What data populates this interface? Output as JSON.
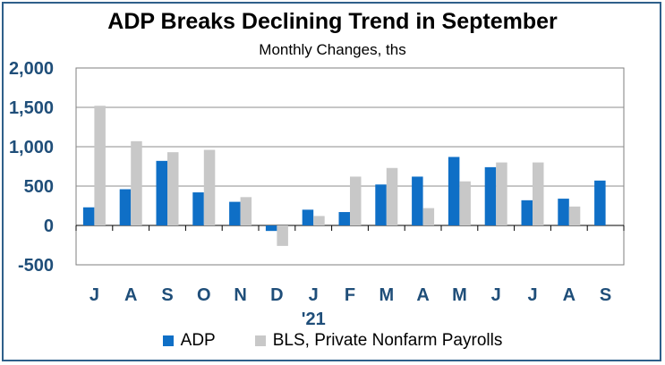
{
  "chart_data": {
    "type": "bar",
    "title": "ADP Breaks Declining Trend in September",
    "subtitle": "Monthly Changes, ths",
    "categories": [
      "J",
      "A",
      "S",
      "O",
      "N",
      "D",
      "J",
      "F",
      "M",
      "A",
      "M",
      "J",
      "J",
      "A",
      "S"
    ],
    "year_marker": {
      "label": "'21",
      "category_index": 6
    },
    "series": [
      {
        "name": "ADP",
        "color": "#0f6fc6",
        "values": [
          230,
          460,
          820,
          420,
          300,
          -70,
          200,
          170,
          520,
          620,
          870,
          740,
          320,
          340,
          570
        ]
      },
      {
        "name": "BLS, Private Nonfarm Payrolls",
        "color": "#c8c8c8",
        "values": [
          1520,
          1070,
          930,
          960,
          360,
          -260,
          120,
          620,
          730,
          220,
          560,
          800,
          800,
          240,
          null
        ]
      }
    ],
    "ylim": [
      -500,
      2000
    ],
    "yticks": [
      -500,
      0,
      500,
      1000,
      1500,
      2000
    ],
    "ytick_labels": [
      "-500",
      "0",
      "500",
      "1,000",
      "1,500",
      "2,000"
    ],
    "grid": true,
    "legend": "bottom"
  }
}
